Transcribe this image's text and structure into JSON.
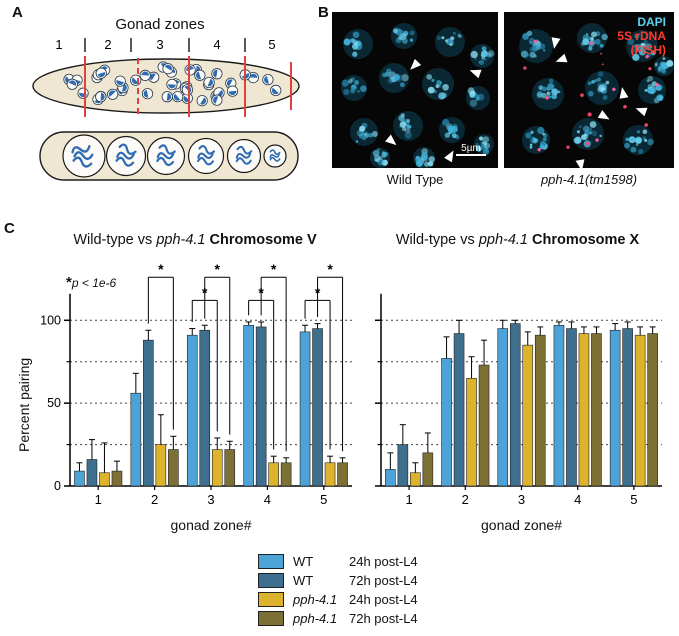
{
  "figure": {
    "panel_a": {
      "label": "A",
      "title": "Gonad zones",
      "zones": [
        "1",
        "2",
        "3",
        "4",
        "5"
      ]
    },
    "panel_b": {
      "label": "B",
      "stain_labels": {
        "dapi": "DAPI",
        "dapi_color": "#5ad2f0",
        "probe": "5S rDNA",
        "method": "(FISH)",
        "probe_color": "#ff3b30"
      },
      "scale_bar": "5µm",
      "caption_left": "Wild Type",
      "caption_right": "pph-4.1(tm1598)"
    },
    "panel_c": {
      "label": "C",
      "sig_star": "*",
      "sig_text": "p < 1e-6"
    }
  },
  "chart_data": [
    {
      "type": "bar",
      "title_normal": "Wild-type vs ",
      "title_italic": "pph-4.1",
      "title_bold": " Chromosome V",
      "xlabel": "gonad zone#",
      "ylabel": "Percent pairing",
      "categories": [
        "1",
        "2",
        "3",
        "4",
        "5"
      ],
      "ylim": [
        0,
        100
      ],
      "yticks": [
        0,
        50,
        100
      ],
      "minor_yticks": [
        25,
        75
      ],
      "gridlines": [
        25,
        50,
        75,
        100
      ],
      "show_ytick_labels": true,
      "grid": true,
      "legend_position": "bottom",
      "series": [
        {
          "name": "WT 24h post-L4",
          "color": "#4DA3D8",
          "values": [
            9,
            56,
            91,
            97,
            93
          ],
          "errors": [
            5,
            12,
            4,
            2,
            4
          ]
        },
        {
          "name": "WT 72h post-L4",
          "color": "#3E6F8E",
          "values": [
            16,
            88,
            94,
            96,
            95
          ],
          "errors": [
            12,
            6,
            3,
            3,
            3
          ]
        },
        {
          "name": "pph-4.1 24h post-L4",
          "color": "#DDB32E",
          "values": [
            8,
            25,
            22,
            14,
            14
          ],
          "errors": [
            18,
            18,
            7,
            4,
            4
          ]
        },
        {
          "name": "pph-4.1 72h post-L4",
          "color": "#7D7034",
          "values": [
            9,
            22,
            22,
            14,
            14
          ],
          "errors": [
            6,
            8,
            5,
            3,
            3
          ]
        }
      ],
      "significance_brackets": [
        {
          "zone": 2,
          "a": 1,
          "b": 3,
          "label": "*"
        },
        {
          "zone": 3,
          "a": 0,
          "b": 2,
          "label": "*"
        },
        {
          "zone": 3,
          "a": 1,
          "b": 3,
          "label": "*"
        },
        {
          "zone": 4,
          "a": 0,
          "b": 2,
          "label": "*"
        },
        {
          "zone": 4,
          "a": 1,
          "b": 3,
          "label": "*"
        },
        {
          "zone": 5,
          "a": 0,
          "b": 2,
          "label": "*"
        },
        {
          "zone": 5,
          "a": 1,
          "b": 3,
          "label": "*"
        }
      ]
    },
    {
      "type": "bar",
      "title_normal": "Wild-type vs ",
      "title_italic": "pph-4.1",
      "title_bold": " Chromosome X",
      "xlabel": "gonad zone#",
      "ylabel": "",
      "categories": [
        "1",
        "2",
        "3",
        "4",
        "5"
      ],
      "ylim": [
        0,
        100
      ],
      "yticks": [
        0,
        50,
        100
      ],
      "minor_yticks": [
        25,
        75
      ],
      "gridlines": [
        25,
        50,
        75,
        100
      ],
      "show_ytick_labels": false,
      "grid": true,
      "legend_position": "bottom",
      "series": [
        {
          "name": "WT 24h post-L4",
          "color": "#4DA3D8",
          "values": [
            10,
            77,
            95,
            97,
            94
          ],
          "errors": [
            10,
            13,
            5,
            2,
            4
          ]
        },
        {
          "name": "WT 72h post-L4",
          "color": "#3E6F8E",
          "values": [
            25,
            92,
            98,
            95,
            95
          ],
          "errors": [
            12,
            8,
            2,
            4,
            4
          ]
        },
        {
          "name": "pph-4.1 24h post-L4",
          "color": "#DDB32E",
          "values": [
            8,
            65,
            85,
            92,
            91
          ],
          "errors": [
            6,
            13,
            8,
            4,
            5
          ]
        },
        {
          "name": "pph-4.1 72h post-L4",
          "color": "#7D7034",
          "values": [
            20,
            73,
            91,
            92,
            92
          ],
          "errors": [
            12,
            15,
            5,
            4,
            4
          ]
        }
      ],
      "significance_brackets": []
    }
  ],
  "legend": {
    "items": [
      {
        "swatch": "#4DA3D8",
        "genotype": "WT",
        "time": "24h post-L4",
        "italic": false
      },
      {
        "swatch": "#3E6F8E",
        "genotype": "WT",
        "time": "72h post-L4",
        "italic": false
      },
      {
        "swatch": "#DDB32E",
        "genotype": "pph-4.1",
        "time": "24h post-L4",
        "italic": true
      },
      {
        "swatch": "#7D7034",
        "genotype": "pph-4.1",
        "time": "72h post-L4",
        "italic": true
      }
    ]
  }
}
